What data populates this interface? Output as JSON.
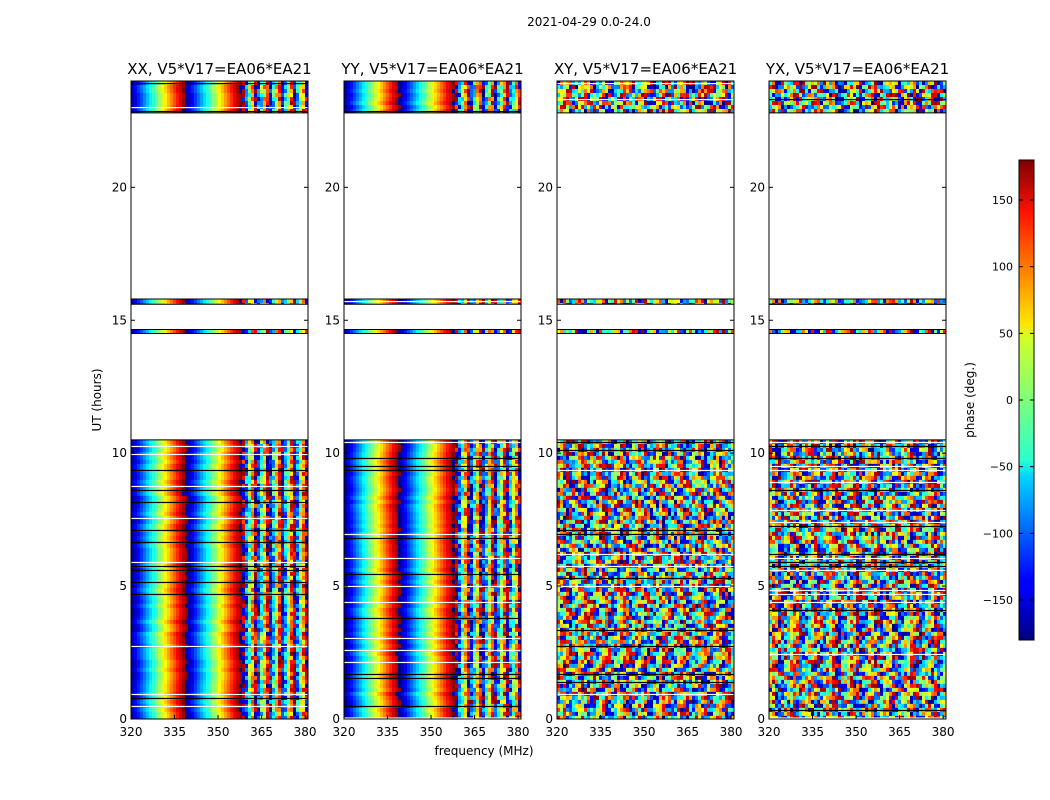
{
  "suptitle": "2021-04-29 0.0-24.0",
  "xlabel": "frequency (MHz)",
  "ylabel": "UT (hours)",
  "colorbar": {
    "label": "phase (deg.)",
    "ticks": [
      150,
      100,
      50,
      0,
      -50,
      -100,
      -150
    ],
    "tick_labels": [
      "150",
      "100",
      "50",
      "0",
      "−50",
      "−100",
      "−150"
    ],
    "range": [
      -180,
      180
    ],
    "colormap": "jet"
  },
  "chart_data": [
    {
      "type": "heatmap",
      "title": "XX, V5*V17=EA06*EA21",
      "xlim": [
        320,
        381
      ],
      "ylim": [
        0,
        24
      ],
      "xticks": [
        320,
        335,
        350,
        365,
        380
      ],
      "yticks": [
        0,
        5,
        10,
        15,
        20
      ],
      "value": "phase (deg.)",
      "data_time_ranges_hours": [
        [
          0.0,
          10.5
        ],
        [
          14.5,
          14.65
        ],
        [
          15.6,
          15.8
        ],
        [
          22.8,
          24.0
        ]
      ]
    },
    {
      "type": "heatmap",
      "title": "YY, V5*V17=EA06*EA21",
      "xlim": [
        320,
        381
      ],
      "ylim": [
        0,
        24
      ],
      "xticks": [
        320,
        335,
        350,
        365,
        380
      ],
      "yticks": [
        0,
        5,
        10,
        15,
        20
      ],
      "value": "phase (deg.)",
      "data_time_ranges_hours": [
        [
          0.0,
          10.5
        ],
        [
          14.5,
          14.65
        ],
        [
          15.6,
          15.8
        ],
        [
          22.8,
          24.0
        ]
      ]
    },
    {
      "type": "heatmap",
      "title": "XY, V5*V17=EA06*EA21",
      "xlim": [
        320,
        381
      ],
      "ylim": [
        0,
        24
      ],
      "xticks": [
        320,
        335,
        350,
        365,
        380
      ],
      "yticks": [
        0,
        5,
        10,
        15,
        20
      ],
      "value": "phase (deg.)",
      "data_time_ranges_hours": [
        [
          0.0,
          10.5
        ],
        [
          14.5,
          14.65
        ],
        [
          15.6,
          15.8
        ],
        [
          22.8,
          24.0
        ]
      ]
    },
    {
      "type": "heatmap",
      "title": "YX, V5*V17=EA06*EA21",
      "xlim": [
        320,
        381
      ],
      "ylim": [
        0,
        24
      ],
      "xticks": [
        320,
        335,
        350,
        365,
        380
      ],
      "yticks": [
        0,
        5,
        10,
        15,
        20
      ],
      "value": "phase (deg.)",
      "data_time_ranges_hours": [
        [
          0.0,
          10.5
        ],
        [
          14.5,
          14.65
        ],
        [
          15.6,
          15.8
        ],
        [
          22.8,
          24.0
        ]
      ]
    }
  ]
}
